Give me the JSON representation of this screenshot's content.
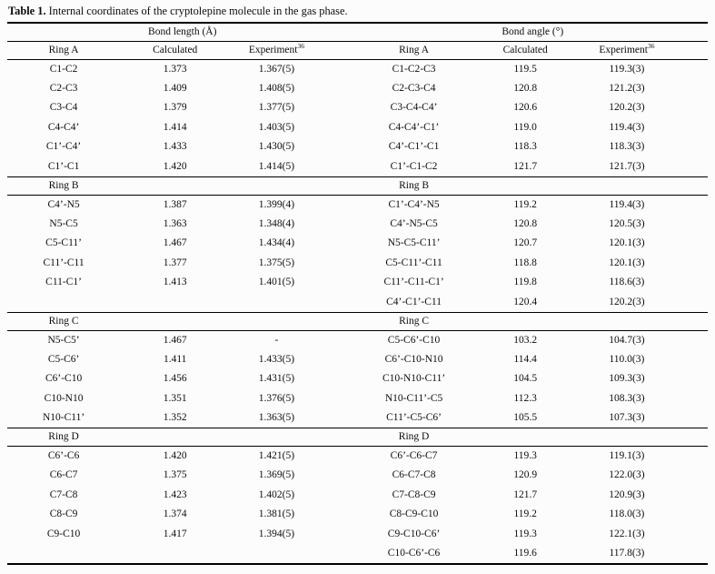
{
  "caption": {
    "label": "Table 1.",
    "text": "Internal coordinates of the cryptolepine molecule in the gas phase."
  },
  "table": {
    "group_headers": [
      {
        "label": "Bond length (Å)"
      },
      {
        "label": "Bond angle (°)"
      }
    ],
    "column_headers": {
      "ring_left": "Ring A",
      "calculated_left": "Calculated",
      "experiment_left": "Experiment",
      "experiment_ref": "36",
      "ring_right": "Ring A",
      "calculated_right": "Calculated",
      "experiment_right": "Experiment"
    },
    "sections": [
      {
        "name": null,
        "rows": [
          {
            "left": [
              "C1-C2",
              "1.373",
              "1.367(5)"
            ],
            "right": [
              "C1-C2-C3",
              "119.5",
              "119.3(3)"
            ]
          },
          {
            "left": [
              "C2-C3",
              "1.409",
              "1.408(5)"
            ],
            "right": [
              "C2-C3-C4",
              "120.8",
              "121.2(3)"
            ]
          },
          {
            "left": [
              "C3-C4",
              "1.379",
              "1.377(5)"
            ],
            "right": [
              "C3-C4-C4’",
              "120.6",
              "120.2(3)"
            ]
          },
          {
            "left": [
              "C4-C4’",
              "1.414",
              "1.403(5)"
            ],
            "right": [
              "C4-C4’-C1’",
              "119.0",
              "119.4(3)"
            ]
          },
          {
            "left": [
              "C1’-C4’",
              "1.433",
              "1.430(5)"
            ],
            "right": [
              "C4’-C1’-C1",
              "118.3",
              "118.3(3)"
            ]
          },
          {
            "left": [
              "C1’-C1",
              "1.420",
              "1.414(5)"
            ],
            "right": [
              "C1’-C1-C2",
              "121.7",
              "121.7(3)"
            ]
          }
        ]
      },
      {
        "name": "Ring B",
        "rows": [
          {
            "left": [
              "C4’-N5",
              "1.387",
              "1.399(4)"
            ],
            "right": [
              "C1’-C4’-N5",
              "119.2",
              "119.4(3)"
            ]
          },
          {
            "left": [
              "N5-C5",
              "1.363",
              "1.348(4)"
            ],
            "right": [
              "C4’-N5-C5",
              "120.8",
              "120.5(3)"
            ]
          },
          {
            "left": [
              "C5-C11’",
              "1.467",
              "1.434(4)"
            ],
            "right": [
              "N5-C5-C11’",
              "120.7",
              "120.1(3)"
            ]
          },
          {
            "left": [
              "C11’-C11",
              "1.377",
              "1.375(5)"
            ],
            "right": [
              "C5-C11’-C11",
              "118.8",
              "120.1(3)"
            ]
          },
          {
            "left": [
              "C11-C1’",
              "1.413",
              "1.401(5)"
            ],
            "right": [
              "C11’-C11-C1’",
              "119.8",
              "118.6(3)"
            ]
          },
          {
            "left": [
              "",
              "",
              ""
            ],
            "right": [
              "C4’-C1’-C11",
              "120.4",
              "120.2(3)"
            ]
          }
        ]
      },
      {
        "name": "Ring C",
        "rows": [
          {
            "left": [
              "N5-C5’",
              "1.467",
              "-"
            ],
            "right": [
              "C5-C6’-C10",
              "103.2",
              "104.7(3)"
            ]
          },
          {
            "left": [
              "C5-C6’",
              "1.411",
              "1.433(5)"
            ],
            "right": [
              "C6’-C10-N10",
              "114.4",
              "110.0(3)"
            ]
          },
          {
            "left": [
              "C6’-C10",
              "1.456",
              "1.431(5)"
            ],
            "right": [
              "C10-N10-C11’",
              "104.5",
              "109.3(3)"
            ]
          },
          {
            "left": [
              "C10-N10",
              "1.351",
              "1.376(5)"
            ],
            "right": [
              "N10-C11’-C5",
              "112.3",
              "108.3(3)"
            ]
          },
          {
            "left": [
              "N10-C11’",
              "1.352",
              "1.363(5)"
            ],
            "right": [
              "C11’-C5-C6’",
              "105.5",
              "107.3(3)"
            ]
          }
        ]
      },
      {
        "name": "Ring D",
        "rows": [
          {
            "left": [
              "C6’-C6",
              "1.420",
              "1.421(5)"
            ],
            "right": [
              "C6’-C6-C7",
              "119.3",
              "119.1(3)"
            ]
          },
          {
            "left": [
              "C6-C7",
              "1.375",
              "1.369(5)"
            ],
            "right": [
              "C6-C7-C8",
              "120.9",
              "122.0(3)"
            ]
          },
          {
            "left": [
              "C7-C8",
              "1.423",
              "1.402(5)"
            ],
            "right": [
              "C7-C8-C9",
              "121.7",
              "120.9(3)"
            ]
          },
          {
            "left": [
              "C8-C9",
              "1.374",
              "1.381(5)"
            ],
            "right": [
              "C8-C9-C10",
              "119.2",
              "118.0(3)"
            ]
          },
          {
            "left": [
              "C9-C10",
              "1.417",
              "1.394(5)"
            ],
            "right": [
              "C9-C10-C6’",
              "119.3",
              "122.1(3)"
            ]
          },
          {
            "left": [
              "",
              "",
              ""
            ],
            "right": [
              "C10-C6’-C6",
              "119.6",
              "117.8(3)"
            ]
          }
        ]
      }
    ]
  }
}
